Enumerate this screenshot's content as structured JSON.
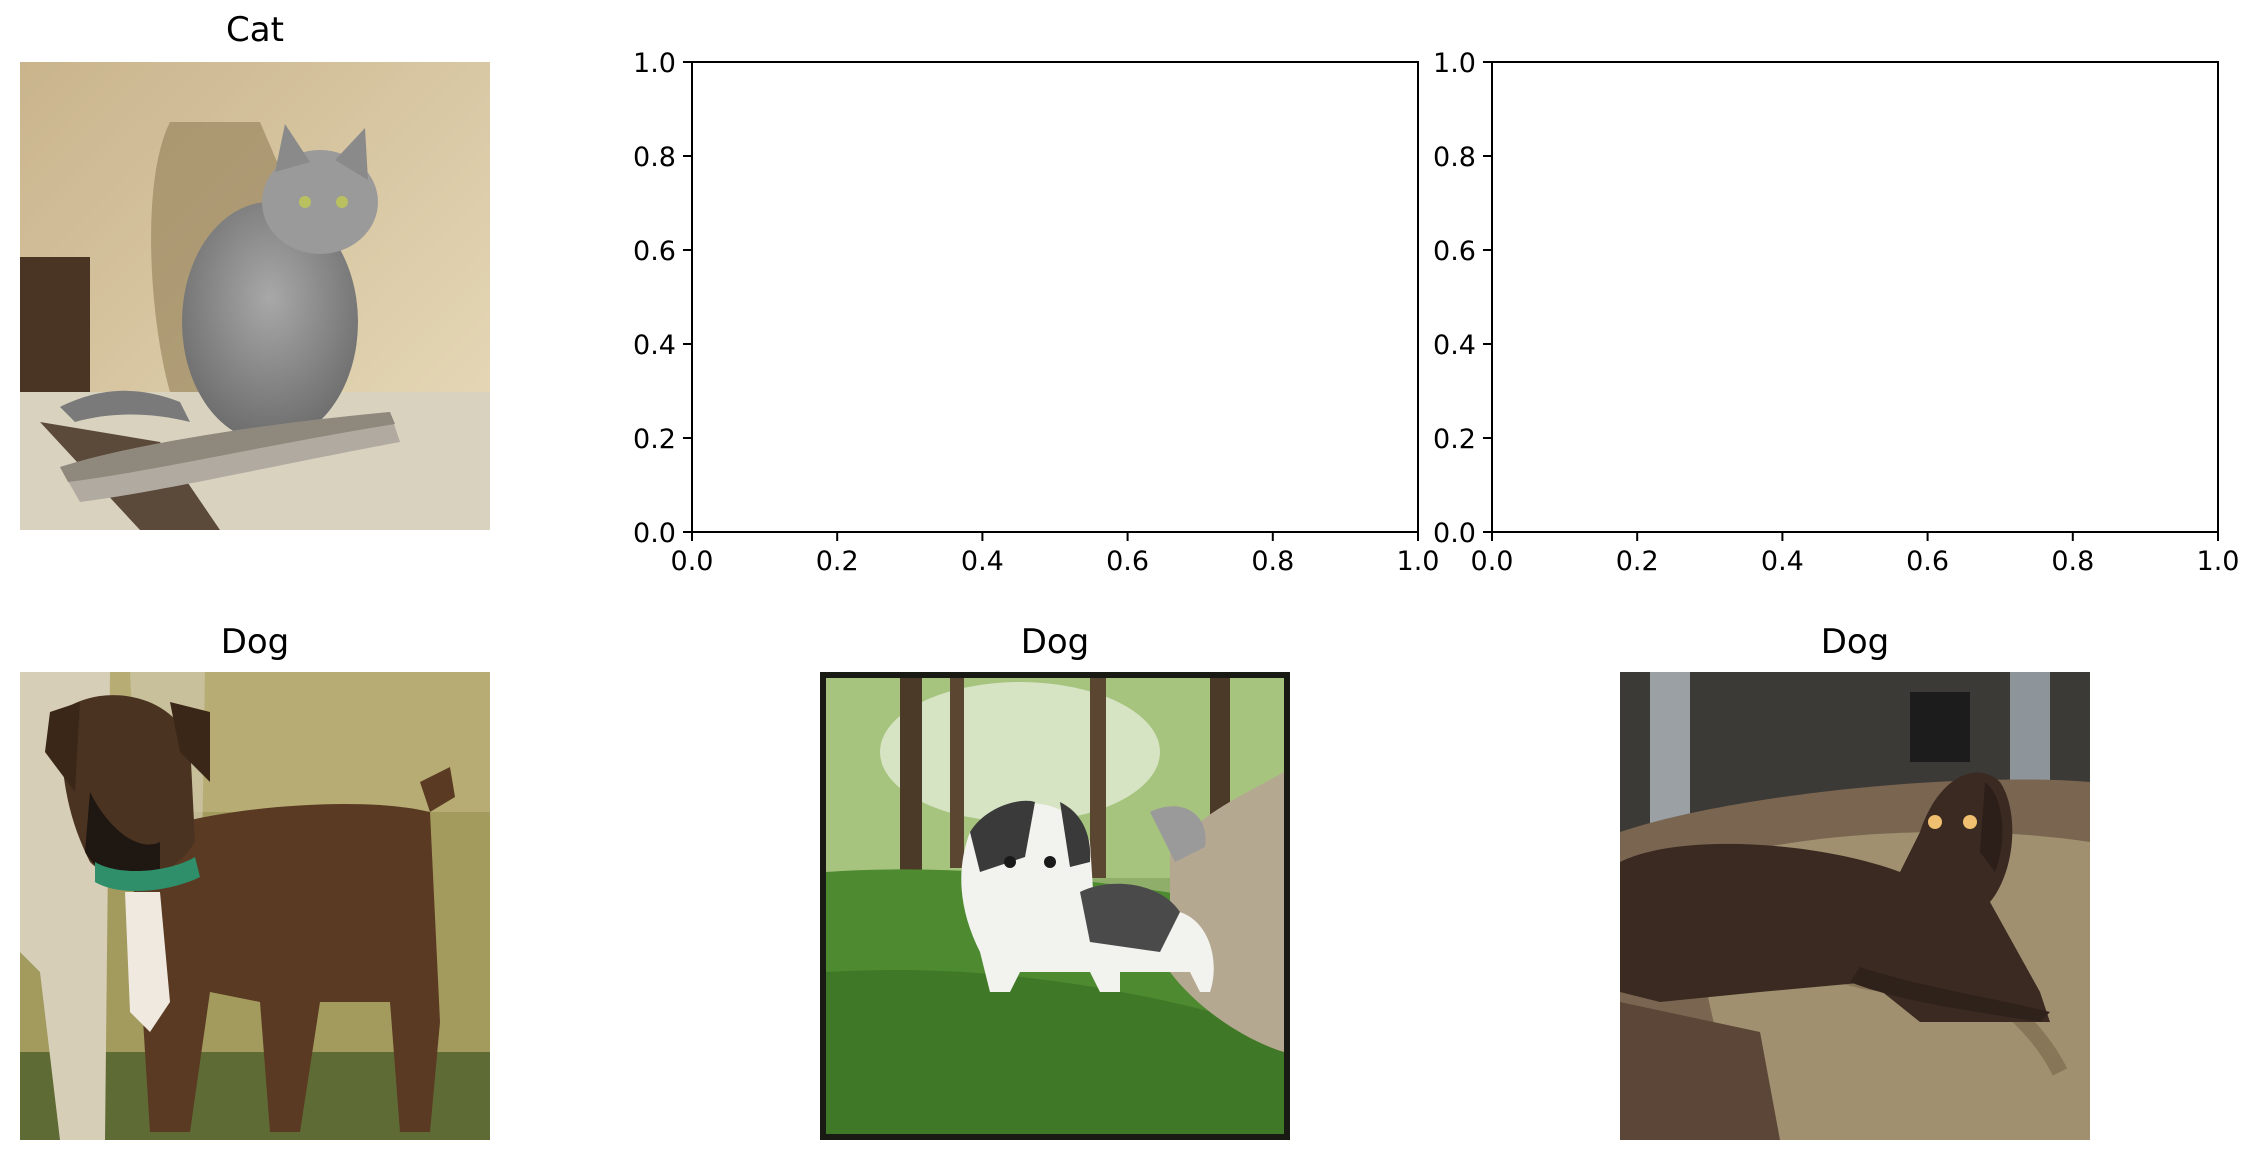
{
  "figure": {
    "images": [
      {
        "title": "Cat",
        "subject": "grey long-haired cat sitting on a carpeted cat tree perch against a cream wall"
      },
      {
        "title": "Dog",
        "subject": "brindle boxer dog standing on dry grass next to a person's legs"
      },
      {
        "title": "Dog",
        "subject": "black and white shih tzu standing on green grass in front of trees"
      },
      {
        "title": "Dog",
        "subject": "dark brown curly-coated dog lying on a patterned rug indoors"
      }
    ]
  },
  "chart_data": [
    {
      "type": "scatter",
      "title": "",
      "xlabel": "",
      "ylabel": "",
      "x": [],
      "y": [],
      "xlim": [
        0.0,
        1.0
      ],
      "ylim": [
        0.0,
        1.0
      ],
      "xticks": [
        "0.0",
        "0.2",
        "0.4",
        "0.6",
        "0.8",
        "1.0"
      ],
      "yticks": [
        "0.0",
        "0.2",
        "0.4",
        "0.6",
        "0.8",
        "1.0"
      ],
      "grid": false
    },
    {
      "type": "scatter",
      "title": "",
      "xlabel": "",
      "ylabel": "",
      "x": [],
      "y": [],
      "xlim": [
        0.0,
        1.0
      ],
      "ylim": [
        0.0,
        1.0
      ],
      "xticks": [
        "0.0",
        "0.2",
        "0.4",
        "0.6",
        "0.8",
        "1.0"
      ],
      "yticks": [
        "0.0",
        "0.2",
        "0.4",
        "0.6",
        "0.8",
        "1.0"
      ],
      "grid": false
    }
  ]
}
